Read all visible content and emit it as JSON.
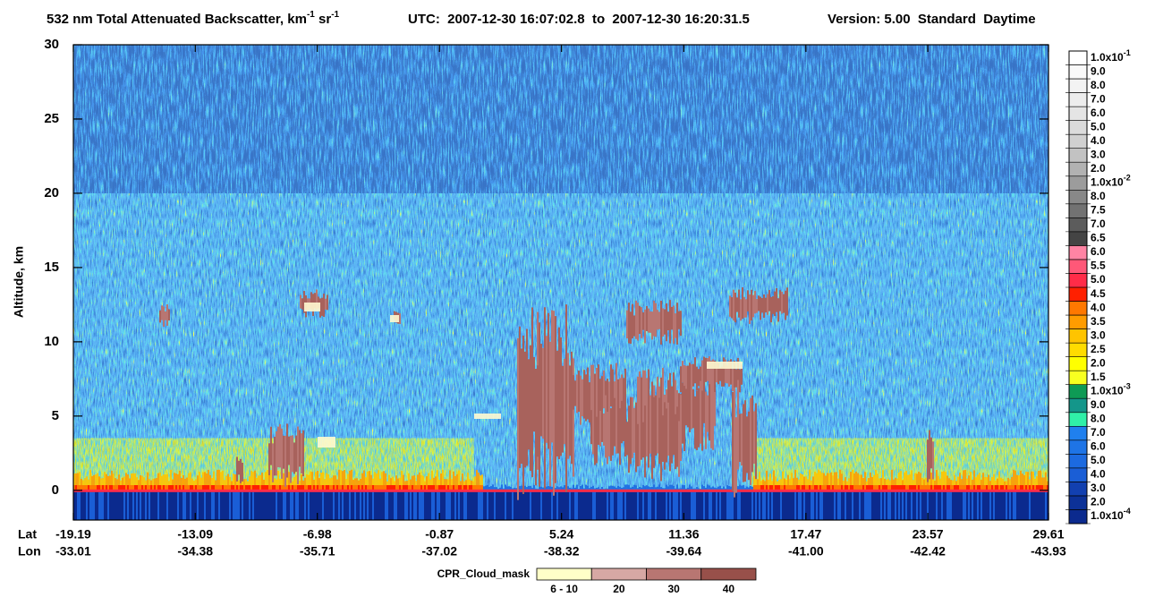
{
  "chart_data": {
    "type": "heatmap",
    "title": "532 nm Total Attenuated Backscatter, km",
    "title_exp1": "-1",
    "title_unit2": " sr",
    "title_exp2": "-1",
    "utc": "UTC:  2007-12-30 16:07:02.8  to  2007-12-30 16:20:31.5",
    "version": "Version: 5.00  Standard  Daytime",
    "ylabel": "Altitude, km",
    "ylim": [
      -2,
      30
    ],
    "yticks": [
      0,
      5,
      10,
      15,
      20,
      25,
      30
    ],
    "xlabel_lat": "Lat",
    "xlabel_lon": "Lon",
    "xlim": [
      -19.19,
      29.61
    ],
    "xticks": [
      -19.19,
      -13.09,
      -6.98,
      -0.87,
      5.24,
      11.36,
      17.47,
      23.57,
      29.61
    ],
    "xticks_lon": [
      -33.01,
      -34.38,
      -35.71,
      -37.02,
      -38.32,
      -39.64,
      {
        "value": -41,
        "label": "-41.00"
      },
      -42.42,
      -43.93
    ],
    "colorbar": [
      {
        "label": "1.0x10",
        "exp": "-4",
        "color": "#0b2a8e"
      },
      {
        "label": "2.0",
        "color": "#0c3197"
      },
      {
        "label": "3.0",
        "color": "#1240b0"
      },
      {
        "label": "4.0",
        "color": "#1a5ed6"
      },
      {
        "label": "5.0",
        "color": "#1c6ae0"
      },
      {
        "label": "6.0",
        "color": "#1e74e6"
      },
      {
        "label": "7.0",
        "color": "#2080ee"
      },
      {
        "label": "8.0",
        "color": "#30f0a8"
      },
      {
        "label": "9.0",
        "color": "#14968a"
      },
      {
        "label": "1.0x10",
        "exp": "-3",
        "color": "#0e9a55"
      },
      {
        "label": "1.5",
        "color": "#f8ff20"
      },
      {
        "label": "2.0",
        "color": "#ffff00"
      },
      {
        "label": "2.5",
        "color": "#ffdc00"
      },
      {
        "label": "3.0",
        "color": "#ffc400"
      },
      {
        "label": "3.5",
        "color": "#ff9c00"
      },
      {
        "label": "4.0",
        "color": "#ff7800"
      },
      {
        "label": "4.5",
        "color": "#ff2000"
      },
      {
        "label": "5.0",
        "color": "#ff2c48"
      },
      {
        "label": "5.5",
        "color": "#ff5878"
      },
      {
        "label": "6.0",
        "color": "#ff84a4"
      },
      {
        "label": "6.5",
        "color": "#444444"
      },
      {
        "label": "7.0",
        "color": "#5c5c5c"
      },
      {
        "label": "7.5",
        "color": "#727272"
      },
      {
        "label": "8.0",
        "color": "#888888"
      },
      {
        "label": "1.0x10",
        "exp": "-2",
        "color": "#9c9c9c"
      },
      {
        "label": "2.0",
        "color": "#b2b2b2"
      },
      {
        "label": "3.0",
        "color": "#c2c2c2"
      },
      {
        "label": "4.0",
        "color": "#d0d0d0"
      },
      {
        "label": "5.0",
        "color": "#dbdbdb"
      },
      {
        "label": "6.0",
        "color": "#e5e5e5"
      },
      {
        "label": "7.0",
        "color": "#ededed"
      },
      {
        "label": "8.0",
        "color": "#f3f3f3"
      },
      {
        "label": "9.0",
        "color": "#f9f9f9"
      },
      {
        "label": "1.0x10",
        "exp": "-1",
        "color": "#ffffff"
      }
    ],
    "cloud_mask_label": "CPR_Cloud_mask",
    "cloud_mask": [
      {
        "label": "6 - 10",
        "color": "#ffffc8"
      },
      {
        "label": "20",
        "color": "#d6a8a4"
      },
      {
        "label": "30",
        "color": "#b87672"
      },
      {
        "label": "40",
        "color": "#98504a"
      }
    ]
  }
}
